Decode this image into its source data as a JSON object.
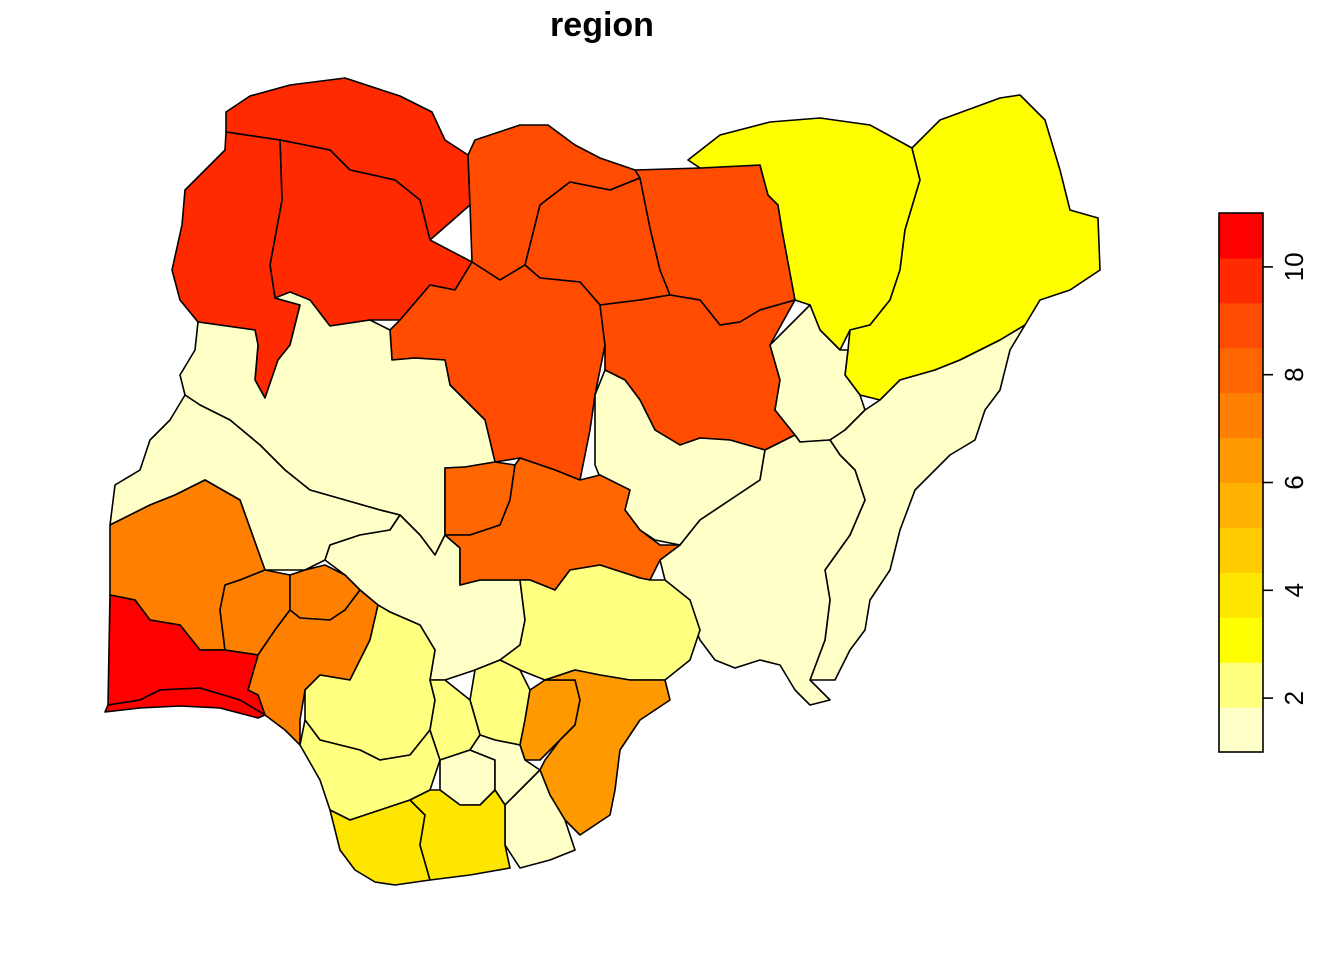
{
  "map": {
    "title": "region"
  },
  "palette": [
    "#FFFFC8",
    "#FFFF80",
    "#FFFF00",
    "#FFE600",
    "#FFCC00",
    "#FFB300",
    "#FF9900",
    "#FF8000",
    "#FF6600",
    "#FF4C00",
    "#FF2A00",
    "#FF0000"
  ],
  "legend": {
    "min": 1,
    "max": 11,
    "ticks": [
      "2",
      "4",
      "6",
      "8",
      "10"
    ],
    "tick_values": [
      2,
      4,
      6,
      8,
      10
    ]
  },
  "regions": [
    {
      "id": "nw-sokoto",
      "value": 10
    },
    {
      "id": "nw-zamfara",
      "value": 10
    },
    {
      "id": "nw-kebbi",
      "value": 10
    },
    {
      "id": "n-katsina",
      "value": 9
    },
    {
      "id": "n-kano",
      "value": 9
    },
    {
      "id": "n-jigawa",
      "value": 9
    },
    {
      "id": "n-kaduna",
      "value": 9
    },
    {
      "id": "n-bauchi",
      "value": 9
    },
    {
      "id": "ne-yobe",
      "value": 3
    },
    {
      "id": "ne-borno",
      "value": 3
    },
    {
      "id": "c-niger",
      "value": 1
    },
    {
      "id": "c-gombe",
      "value": 1
    },
    {
      "id": "c-adamawa",
      "value": 1
    },
    {
      "id": "c-plateau",
      "value": 1
    },
    {
      "id": "c-taraba",
      "value": 1
    },
    {
      "id": "c-kwara",
      "value": 1
    },
    {
      "id": "c-kogi",
      "value": 1
    },
    {
      "id": "c-fct",
      "value": 8
    },
    {
      "id": "c-nasarawa",
      "value": 8
    },
    {
      "id": "sw-oyo",
      "value": 7
    },
    {
      "id": "sw-osun",
      "value": 7
    },
    {
      "id": "sw-ekiti",
      "value": 7
    },
    {
      "id": "sw-ondo",
      "value": 7
    },
    {
      "id": "sw-ogun",
      "value": 11
    },
    {
      "id": "sw-lagos",
      "value": 11
    },
    {
      "id": "s-benue",
      "value": 2
    },
    {
      "id": "s-edo",
      "value": 2
    },
    {
      "id": "s-enugu",
      "value": 2
    },
    {
      "id": "s-delta",
      "value": 2
    },
    {
      "id": "s-anambra",
      "value": 2
    },
    {
      "id": "s-ebonyi",
      "value": 6
    },
    {
      "id": "s-crossriver",
      "value": 6
    },
    {
      "id": "s-imo",
      "value": 1
    },
    {
      "id": "s-abia",
      "value": 1
    },
    {
      "id": "s-akwaibom",
      "value": 1
    },
    {
      "id": "s-bayelsa",
      "value": 4
    },
    {
      "id": "s-rivers",
      "value": 4
    }
  ]
}
